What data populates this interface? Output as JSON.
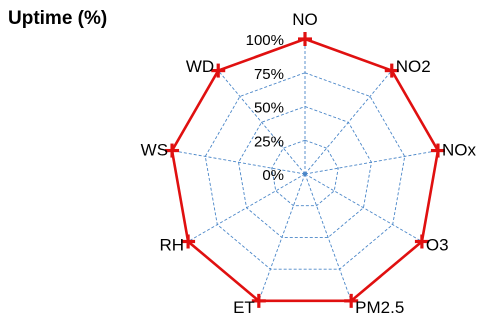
{
  "chart_data": {
    "type": "radar",
    "title": "Uptime (%)",
    "categories": [
      "NO",
      "NO2",
      "NOx",
      "O3",
      "PM2.5",
      "ET",
      "RH",
      "WS",
      "WD"
    ],
    "tick_labels": [
      "0%",
      "25%",
      "50%",
      "75%",
      "100%"
    ],
    "rlim": [
      0,
      100
    ],
    "series": [
      {
        "values": [
          100,
          100,
          100,
          100,
          100,
          100,
          100,
          100,
          100
        ]
      }
    ],
    "grid": true,
    "colors": {
      "series_line": "#e01010",
      "grid": "#4a86c8"
    }
  }
}
